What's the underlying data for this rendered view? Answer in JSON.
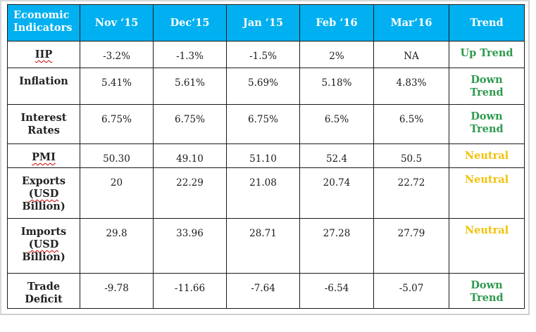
{
  "colors": {
    "header_bg": "#00b0f0",
    "header_text": "#ffffff",
    "up": "#2e9a4e",
    "down": "#2e9a4e",
    "neutral": "#f2c20c"
  },
  "headers": [
    "Economic Indicators",
    "Nov ‘15",
    "Dec‘15",
    "Jan ‘15",
    "Feb ‘16",
    "Mar‘16",
    "Trend"
  ],
  "rows": [
    {
      "label_lines": [
        "IIP"
      ],
      "values": [
        "-3.2%",
        "-1.3%",
        "-1.5%",
        "2%",
        "NA"
      ],
      "trend_lines": [
        "Up Trend"
      ],
      "trend_color": "#2e9a4e"
    },
    {
      "label_lines": [
        "Inflation"
      ],
      "values": [
        "5.41%",
        "5.61%",
        "5.69%",
        "5.18%",
        "4.83%"
      ],
      "trend_lines": [
        "Down",
        "Trend"
      ],
      "trend_color": "#2e9a4e"
    },
    {
      "label_lines": [
        "Interest",
        "Rates"
      ],
      "values": [
        "6.75%",
        "6.75%",
        "6.75%",
        "6.5%",
        "6.5%"
      ],
      "trend_lines": [
        "Down",
        "Trend"
      ],
      "trend_color": "#2e9a4e"
    },
    {
      "label_lines": [
        "PMI"
      ],
      "values": [
        "50.30",
        "49.10",
        "51.10",
        "52.4",
        "50.5"
      ],
      "trend_lines": [
        "Neutral"
      ],
      "trend_color": "#f2c20c"
    },
    {
      "label_lines": [
        "Exports",
        "(USD",
        "Billion)"
      ],
      "values": [
        "20",
        "22.29",
        "21.08",
        "20.74",
        "22.72"
      ],
      "trend_lines": [
        "Neutral"
      ],
      "trend_color": "#f2c20c"
    },
    {
      "label_lines": [
        "Imports",
        "(USD",
        "Billion)"
      ],
      "values": [
        "29.8",
        "33.96",
        "28.71",
        "27.28",
        "27.79"
      ],
      "trend_lines": [
        "Neutral"
      ],
      "trend_color": "#f2c20c"
    },
    {
      "label_lines": [
        "Trade",
        "Deficit"
      ],
      "values": [
        "-9.78",
        "-11.66",
        "-7.64",
        "-6.54",
        "-5.07"
      ],
      "trend_lines": [
        "Down",
        "Trend"
      ],
      "trend_color": "#2e9a4e"
    }
  ]
}
